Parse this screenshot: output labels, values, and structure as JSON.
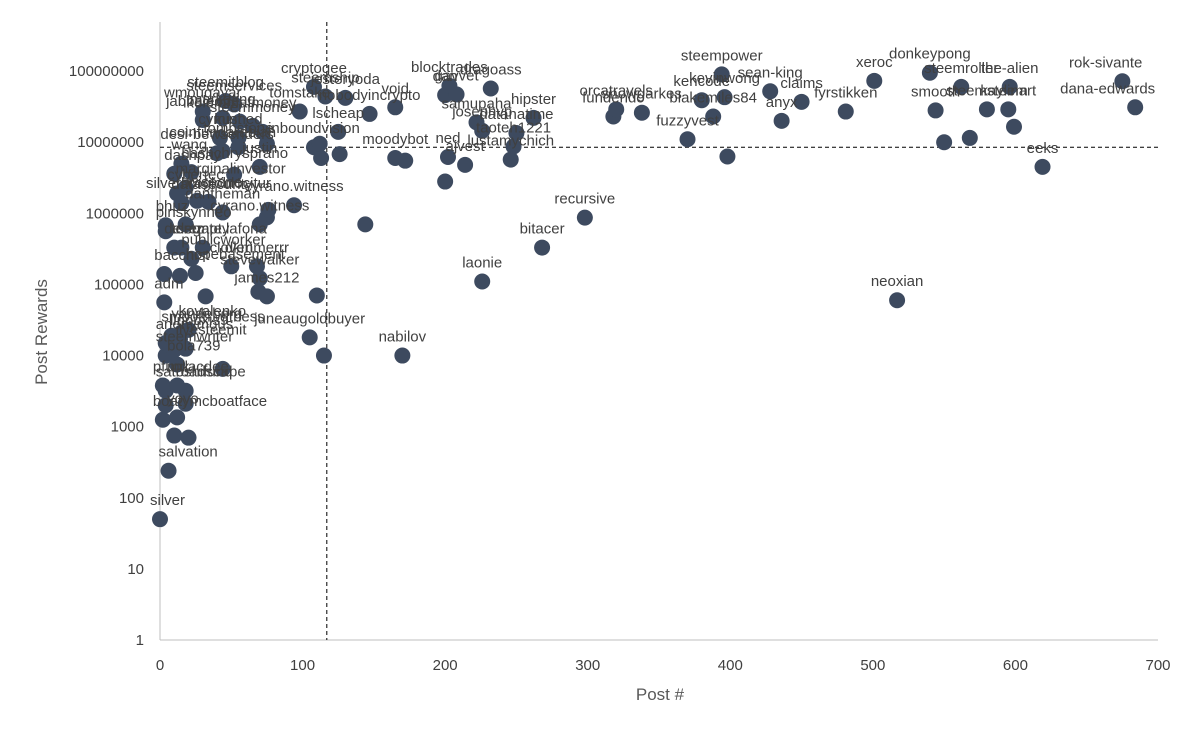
{
  "chart_data": {
    "type": "scatter",
    "xlabel": "Post #",
    "ylabel": "Post Rewards",
    "xlim": [
      0,
      700
    ],
    "ylim": [
      1,
      1000000000
    ],
    "y_scale": "log",
    "x_ticks": [
      "0",
      "100",
      "200",
      "300",
      "400",
      "500",
      "600",
      "700"
    ],
    "y_ticks": [
      "1",
      "10",
      "100",
      "1000",
      "10000",
      "100000",
      "1000000",
      "10000000",
      "100000000"
    ],
    "grid": false,
    "reference_lines": {
      "x": 117,
      "y": 8500000
    },
    "colors": {
      "marker": "#3d4a5f",
      "axis": "#bfbfbf",
      "text": "#404040",
      "reference": "#000000"
    },
    "points": [
      {
        "x": 0,
        "y": 50,
        "label": "silver"
      },
      {
        "x": 6,
        "y": 240,
        "label": "salvation"
      },
      {
        "x": 10,
        "y": 750,
        "label": ""
      },
      {
        "x": 20,
        "y": 700,
        "label": ""
      },
      {
        "x": 2,
        "y": 1250,
        "label": "boatymcboatface"
      },
      {
        "x": 12,
        "y": 1350,
        "label": "yoyo"
      },
      {
        "x": 4,
        "y": 2000,
        "label": ""
      },
      {
        "x": 18,
        "y": 2100,
        "label": ""
      },
      {
        "x": 4,
        "y": 3200,
        "label": "satoshifund"
      },
      {
        "x": 18,
        "y": 3200,
        "label": "roadscape"
      },
      {
        "x": 2,
        "y": 3800,
        "label": "pfunk"
      },
      {
        "x": 12,
        "y": 3800,
        "label": "mrlacdee"
      },
      {
        "x": 12,
        "y": 7500,
        "label": "bola739"
      },
      {
        "x": 44,
        "y": 6500,
        "label": ""
      },
      {
        "x": 4,
        "y": 10000,
        "label": "steemwriter"
      },
      {
        "x": 10,
        "y": 12000,
        "label": ""
      },
      {
        "x": 18,
        "y": 12500,
        "label": "ilvesteemit"
      },
      {
        "x": 4,
        "y": 15000,
        "label": "anonymous"
      },
      {
        "x": 14,
        "y": 17000,
        "label": "linouxis9"
      },
      {
        "x": 8,
        "y": 19000,
        "label": "smooth.witness"
      },
      {
        "x": 15,
        "y": 21000,
        "label": "vandeberg"
      },
      {
        "x": 20,
        "y": 23000,
        "label": "kovalenko"
      },
      {
        "x": 3,
        "y": 56000,
        "label": "adm"
      },
      {
        "x": 32,
        "y": 68000,
        "label": ""
      },
      {
        "x": 69,
        "y": 79000,
        "label": ""
      },
      {
        "x": 75,
        "y": 68000,
        "label": "james212"
      },
      {
        "x": 110,
        "y": 70000,
        "label": ""
      },
      {
        "x": 105,
        "y": 18000,
        "label": "juneaugoldbuyer"
      },
      {
        "x": 115,
        "y": 10000,
        "label": ""
      },
      {
        "x": 170,
        "y": 10000,
        "label": "nabilov"
      },
      {
        "x": 226,
        "y": 110000,
        "label": "laonie"
      },
      {
        "x": 268,
        "y": 330000,
        "label": "bitacer"
      },
      {
        "x": 298,
        "y": 870000,
        "label": "recursive"
      },
      {
        "x": 517,
        "y": 60000,
        "label": "neoxian"
      },
      {
        "x": 3,
        "y": 140000,
        "label": "bacchist"
      },
      {
        "x": 14,
        "y": 132000,
        "label": ""
      },
      {
        "x": 25,
        "y": 145000,
        "label": "hopebasement"
      },
      {
        "x": 50,
        "y": 180000,
        "label": "cloveri"
      },
      {
        "x": 70,
        "y": 122000,
        "label": "stevewalker"
      },
      {
        "x": 68,
        "y": 180000,
        "label": "dkmmerrr"
      },
      {
        "x": 22,
        "y": 230000,
        "label": "publicworker"
      },
      {
        "x": 10,
        "y": 330000,
        "label": "delegate.lafona"
      },
      {
        "x": 15,
        "y": 330000,
        "label": "testz"
      },
      {
        "x": 30,
        "y": 330000,
        "label": "crempty"
      },
      {
        "x": 4,
        "y": 560000,
        "label": "pinskynneo"
      },
      {
        "x": 4,
        "y": 680000,
        "label": "bhuz"
      },
      {
        "x": 18,
        "y": 700000,
        "label": ""
      },
      {
        "x": 70,
        "y": 700000,
        "label": "cyrano.witness"
      },
      {
        "x": 75,
        "y": 880000,
        "label": ""
      },
      {
        "x": 144,
        "y": 700000,
        "label": ""
      },
      {
        "x": 44,
        "y": 1030000,
        "label": "dantheman"
      },
      {
        "x": 94,
        "y": 1300000,
        "label": "cyrano.witness"
      },
      {
        "x": 76,
        "y": 1120000,
        "label": ""
      },
      {
        "x": 15,
        "y": 1400000,
        "label": "datasecurity"
      },
      {
        "x": 26,
        "y": 1500000,
        "label": "wiseone"
      },
      {
        "x": 34,
        "y": 1450000,
        "label": "silverbrogloblocitur"
      },
      {
        "x": 12,
        "y": 1900000,
        "label": "cybertec"
      },
      {
        "x": 18,
        "y": 2300000,
        "label": "marginalinvestor"
      },
      {
        "x": 10,
        "y": 3600000,
        "label": "dashpay"
      },
      {
        "x": 22,
        "y": 3800000,
        "label": "hashchrysprano"
      },
      {
        "x": 52,
        "y": 3500000,
        "label": ""
      },
      {
        "x": 70,
        "y": 4500000,
        "label": "justin"
      },
      {
        "x": 15,
        "y": 5000000,
        "label": "wang"
      },
      {
        "x": 40,
        "y": 7000000,
        "label": "desi-bewsenders"
      },
      {
        "x": 44,
        "y": 7500000,
        "label": "coinfundarabian"
      },
      {
        "x": 55,
        "y": 11500000,
        "label": "kushed"
      },
      {
        "x": 55,
        "y": 8500000,
        "label": "tombstone"
      },
      {
        "x": 75,
        "y": 9500000,
        "label": ""
      },
      {
        "x": 42,
        "y": 11500000,
        "label": "cymint"
      },
      {
        "x": 30,
        "y": 20500000,
        "label": "jabbaleone"
      },
      {
        "x": 56,
        "y": 19500000,
        "label": "ikelemmafmoney"
      },
      {
        "x": 72,
        "y": 14000000,
        "label": ""
      },
      {
        "x": 65,
        "y": 17000000,
        "label": "steemmoney"
      },
      {
        "x": 44,
        "y": 22000000,
        "label": "marketing"
      },
      {
        "x": 30,
        "y": 27000000,
        "label": "wmougayar"
      },
      {
        "x": 46,
        "y": 38000000,
        "label": "steemitblog"
      },
      {
        "x": 52,
        "y": 34000000,
        "label": "steemservices"
      },
      {
        "x": 98,
        "y": 27000000,
        "label": "tomstake"
      },
      {
        "x": 108,
        "y": 8500000,
        "label": "inboundvision"
      },
      {
        "x": 113,
        "y": 6000000,
        "label": ""
      },
      {
        "x": 112,
        "y": 9500000,
        "label": ""
      },
      {
        "x": 108,
        "y": 60000000,
        "label": "cryptogee"
      },
      {
        "x": 116,
        "y": 44000000,
        "label": "steemship"
      },
      {
        "x": 130,
        "y": 42000000,
        "label": "jesteryoda"
      },
      {
        "x": 125,
        "y": 14000000,
        "label": "lscheap"
      },
      {
        "x": 126,
        "y": 6800000,
        "label": ""
      },
      {
        "x": 147,
        "y": 25000000,
        "label": "nobodyincrypto"
      },
      {
        "x": 165,
        "y": 6000000,
        "label": "moodybot"
      },
      {
        "x": 172,
        "y": 5500000,
        "label": ""
      },
      {
        "x": 165,
        "y": 31000000,
        "label": "void"
      },
      {
        "x": 200,
        "y": 2800000,
        "label": ""
      },
      {
        "x": 202,
        "y": 6200000,
        "label": "ned"
      },
      {
        "x": 214,
        "y": 4800000,
        "label": "ajvest"
      },
      {
        "x": 200,
        "y": 46000000,
        "label": "dan"
      },
      {
        "x": 203,
        "y": 62000000,
        "label": "blocktrades"
      },
      {
        "x": 208,
        "y": 47000000,
        "label": "gavvet"
      },
      {
        "x": 232,
        "y": 57000000,
        "label": "dragoass"
      },
      {
        "x": 222,
        "y": 19000000,
        "label": "samupaha"
      },
      {
        "x": 226,
        "y": 14500000,
        "label": "josephvp"
      },
      {
        "x": 246,
        "y": 5700000,
        "label": "lustamychich"
      },
      {
        "x": 248,
        "y": 8700000,
        "label": "taoteh1221"
      },
      {
        "x": 250,
        "y": 13500000,
        "label": "datanatime"
      },
      {
        "x": 262,
        "y": 22000000,
        "label": "hipster"
      },
      {
        "x": 318,
        "y": 23000000,
        "label": "fundendo"
      },
      {
        "x": 320,
        "y": 29000000,
        "label": "orcatravels"
      },
      {
        "x": 338,
        "y": 26000000,
        "label": "snowgarkes"
      },
      {
        "x": 370,
        "y": 11000000,
        "label": "fuzzyvest"
      },
      {
        "x": 380,
        "y": 39000000,
        "label": "kencode"
      },
      {
        "x": 388,
        "y": 23000000,
        "label": "blakemiles84"
      },
      {
        "x": 394,
        "y": 90000000,
        "label": "steempower"
      },
      {
        "x": 396,
        "y": 43000000,
        "label": "kevinwong"
      },
      {
        "x": 398,
        "y": 6300000,
        "label": ""
      },
      {
        "x": 428,
        "y": 52000000,
        "label": "sean-king"
      },
      {
        "x": 436,
        "y": 20000000,
        "label": "anyx"
      },
      {
        "x": 450,
        "y": 37000000,
        "label": "claims"
      },
      {
        "x": 481,
        "y": 27000000,
        "label": "fyrstikken"
      },
      {
        "x": 501,
        "y": 73000000,
        "label": "xeroc"
      },
      {
        "x": 540,
        "y": 95000000,
        "label": "donkeypong"
      },
      {
        "x": 544,
        "y": 28000000,
        "label": "smooth"
      },
      {
        "x": 550,
        "y": 10000000,
        "label": ""
      },
      {
        "x": 562,
        "y": 60000000,
        "label": "steemroller"
      },
      {
        "x": 568,
        "y": 11500000,
        "label": ""
      },
      {
        "x": 580,
        "y": 29000000,
        "label": "steemsteem"
      },
      {
        "x": 595,
        "y": 29000000,
        "label": "kaylinart"
      },
      {
        "x": 596,
        "y": 60000000,
        "label": "the-alien"
      },
      {
        "x": 599,
        "y": 16500000,
        "label": ""
      },
      {
        "x": 619,
        "y": 4500000,
        "label": "eeks"
      },
      {
        "x": 675,
        "y": 72000000,
        "label": "rok-sivante"
      },
      {
        "x": 684,
        "y": 31000000,
        "label": "dana-edwards"
      }
    ]
  }
}
